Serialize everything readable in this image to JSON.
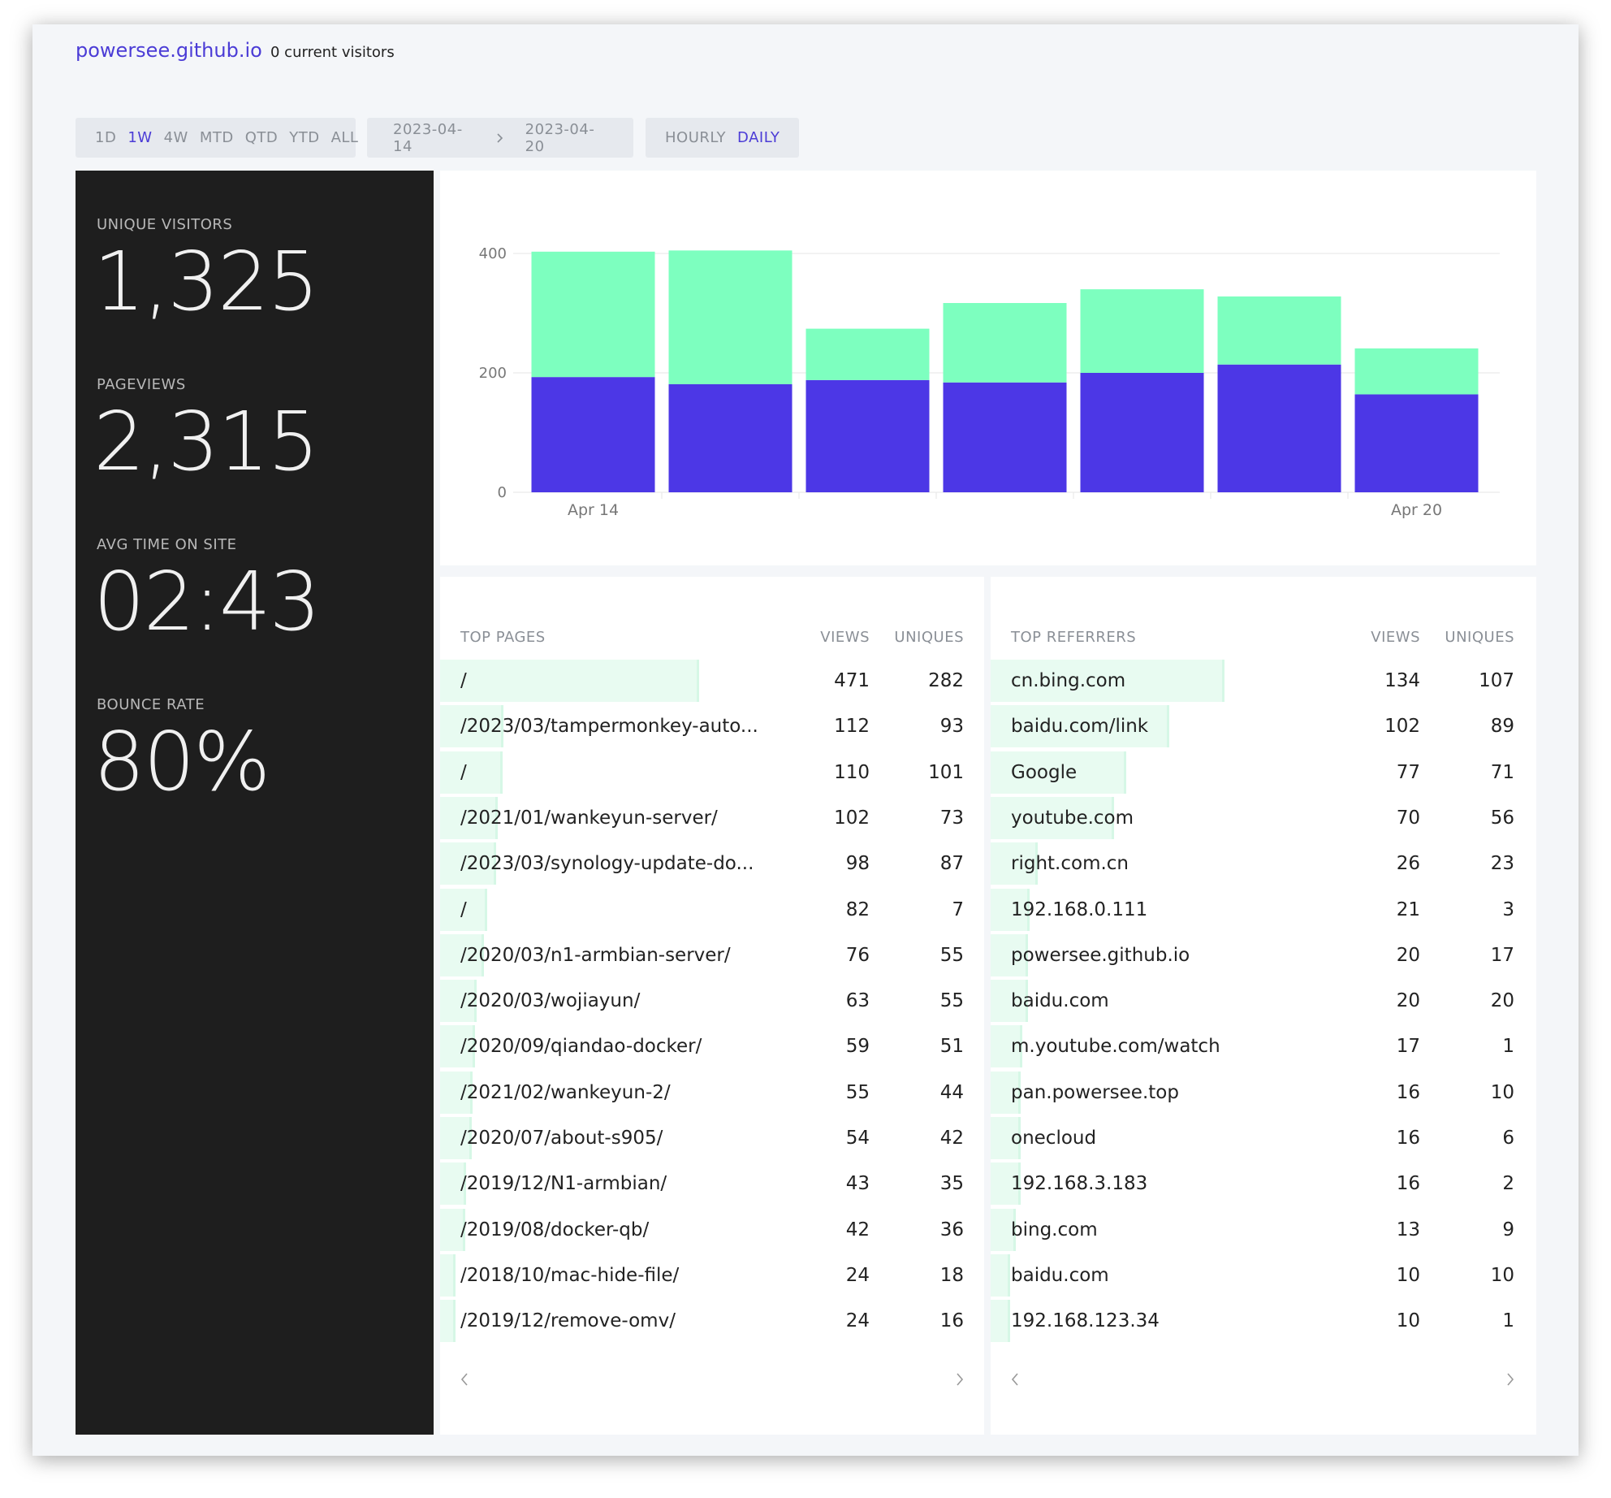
{
  "header": {
    "site": "powersee.github.io",
    "visitors": "0 current visitors"
  },
  "controls": {
    "ranges": [
      "1D",
      "1W",
      "4W",
      "MTD",
      "QTD",
      "YTD",
      "ALL"
    ],
    "active_range": 1,
    "date_from": "2023-04-14",
    "date_to": "2023-04-20",
    "granularity": [
      "HOURLY",
      "DAILY"
    ],
    "active_granularity": 1
  },
  "stats": [
    {
      "label": "UNIQUE VISITORS",
      "value": "1,325"
    },
    {
      "label": "PAGEVIEWS",
      "value": "2,315"
    },
    {
      "label": "AVG TIME ON SITE",
      "value": "02:43"
    },
    {
      "label": "BOUNCE RATE",
      "value": "80%"
    }
  ],
  "chart_data": {
    "type": "bar",
    "stacked": true,
    "categories": [
      "Apr 14",
      null,
      null,
      null,
      null,
      null,
      "Apr 20"
    ],
    "series": [
      {
        "color": "#4c37e6",
        "values": [
          193,
          181,
          188,
          184,
          200,
          214,
          164
        ]
      },
      {
        "color": "#7dffbf",
        "values": [
          210,
          224,
          86,
          133,
          140,
          114,
          77
        ]
      }
    ],
    "ylim": [
      0,
      400
    ],
    "yticks": [
      0,
      200,
      400
    ],
    "grid": true
  },
  "top_pages": {
    "title": "TOP PAGES",
    "columns": [
      "VIEWS",
      "UNIQUES"
    ],
    "rows": [
      [
        "/",
        471,
        282
      ],
      [
        "/2023/03/tampermonkey-auto...",
        112,
        93
      ],
      [
        "/",
        110,
        101
      ],
      [
        "/2021/01/wankeyun-server/",
        102,
        73
      ],
      [
        "/2023/03/synology-update-do...",
        98,
        87
      ],
      [
        "/",
        82,
        7
      ],
      [
        "/2020/03/n1-armbian-server/",
        76,
        55
      ],
      [
        "/2020/03/wojiayun/",
        63,
        55
      ],
      [
        "/2020/09/qiandao-docker/",
        59,
        51
      ],
      [
        "/2021/02/wankeyun-2/",
        55,
        44
      ],
      [
        "/2020/07/about-s905/",
        54,
        42
      ],
      [
        "/2019/12/N1-armbian/",
        43,
        35
      ],
      [
        "/2019/08/docker-qb/",
        42,
        36
      ],
      [
        "/2018/10/mac-hide-file/",
        24,
        18
      ],
      [
        "/2019/12/remove-omv/",
        24,
        16
      ]
    ]
  },
  "top_referrers": {
    "title": "TOP REFERRERS",
    "columns": [
      "VIEWS",
      "UNIQUES"
    ],
    "rows": [
      [
        "cn.bing.com",
        134,
        107
      ],
      [
        "baidu.com/link",
        102,
        89
      ],
      [
        "Google",
        77,
        71
      ],
      [
        "youtube.com",
        70,
        56
      ],
      [
        "right.com.cn",
        26,
        23
      ],
      [
        "192.168.0.111",
        21,
        3
      ],
      [
        "powersee.github.io",
        20,
        17
      ],
      [
        "baidu.com",
        20,
        20
      ],
      [
        "m.youtube.com/watch",
        17,
        1
      ],
      [
        "pan.powersee.top",
        16,
        10
      ],
      [
        "onecloud",
        16,
        6
      ],
      [
        "192.168.3.183",
        16,
        2
      ],
      [
        "bing.com",
        13,
        9
      ],
      [
        "baidu.com",
        10,
        10
      ],
      [
        "192.168.123.34",
        10,
        1
      ]
    ]
  }
}
